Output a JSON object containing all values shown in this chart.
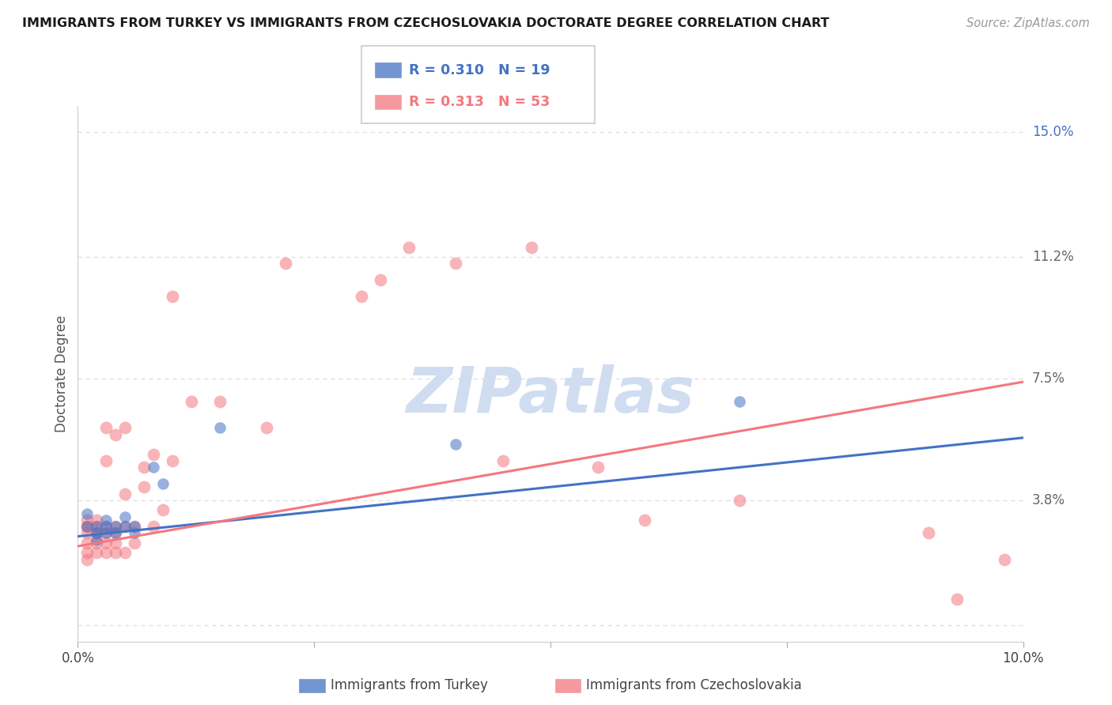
{
  "title": "IMMIGRANTS FROM TURKEY VS IMMIGRANTS FROM CZECHOSLOVAKIA DOCTORATE DEGREE CORRELATION CHART",
  "source": "Source: ZipAtlas.com",
  "ylabel": "Doctorate Degree",
  "y_ticks": [
    0.0,
    0.038,
    0.075,
    0.112,
    0.15
  ],
  "y_tick_labels": [
    "",
    "3.8%",
    "7.5%",
    "11.2%",
    "15.0%"
  ],
  "x_range": [
    0.0,
    0.1
  ],
  "y_range": [
    -0.005,
    0.158
  ],
  "legend1_R": "0.310",
  "legend1_N": "19",
  "legend2_R": "0.313",
  "legend2_N": "53",
  "blue_color": "#4472C4",
  "pink_color": "#F4777F",
  "blue_scatter": [
    [
      0.001,
      0.03
    ],
    [
      0.001,
      0.034
    ],
    [
      0.002,
      0.028
    ],
    [
      0.002,
      0.03
    ],
    [
      0.002,
      0.026
    ],
    [
      0.003,
      0.028
    ],
    [
      0.003,
      0.03
    ],
    [
      0.003,
      0.032
    ],
    [
      0.004,
      0.03
    ],
    [
      0.004,
      0.028
    ],
    [
      0.005,
      0.03
    ],
    [
      0.005,
      0.033
    ],
    [
      0.006,
      0.028
    ],
    [
      0.006,
      0.03
    ],
    [
      0.008,
      0.048
    ],
    [
      0.009,
      0.043
    ],
    [
      0.015,
      0.06
    ],
    [
      0.04,
      0.055
    ],
    [
      0.07,
      0.068
    ]
  ],
  "pink_scatter": [
    [
      0.001,
      0.03
    ],
    [
      0.001,
      0.028
    ],
    [
      0.001,
      0.025
    ],
    [
      0.001,
      0.022
    ],
    [
      0.001,
      0.02
    ],
    [
      0.001,
      0.03
    ],
    [
      0.001,
      0.032
    ],
    [
      0.002,
      0.028
    ],
    [
      0.002,
      0.025
    ],
    [
      0.002,
      0.022
    ],
    [
      0.002,
      0.03
    ],
    [
      0.002,
      0.032
    ],
    [
      0.002,
      0.028
    ],
    [
      0.003,
      0.028
    ],
    [
      0.003,
      0.03
    ],
    [
      0.003,
      0.025
    ],
    [
      0.003,
      0.022
    ],
    [
      0.003,
      0.05
    ],
    [
      0.003,
      0.06
    ],
    [
      0.004,
      0.058
    ],
    [
      0.004,
      0.03
    ],
    [
      0.004,
      0.028
    ],
    [
      0.004,
      0.022
    ],
    [
      0.004,
      0.025
    ],
    [
      0.005,
      0.03
    ],
    [
      0.005,
      0.04
    ],
    [
      0.005,
      0.022
    ],
    [
      0.005,
      0.06
    ],
    [
      0.006,
      0.03
    ],
    [
      0.006,
      0.025
    ],
    [
      0.007,
      0.048
    ],
    [
      0.007,
      0.042
    ],
    [
      0.008,
      0.052
    ],
    [
      0.008,
      0.03
    ],
    [
      0.009,
      0.035
    ],
    [
      0.01,
      0.05
    ],
    [
      0.01,
      0.1
    ],
    [
      0.012,
      0.068
    ],
    [
      0.015,
      0.068
    ],
    [
      0.02,
      0.06
    ],
    [
      0.022,
      0.11
    ],
    [
      0.03,
      0.1
    ],
    [
      0.032,
      0.105
    ],
    [
      0.035,
      0.115
    ],
    [
      0.04,
      0.11
    ],
    [
      0.045,
      0.05
    ],
    [
      0.048,
      0.115
    ],
    [
      0.055,
      0.048
    ],
    [
      0.06,
      0.032
    ],
    [
      0.07,
      0.038
    ],
    [
      0.09,
      0.028
    ],
    [
      0.093,
      0.008
    ],
    [
      0.098,
      0.02
    ]
  ],
  "blue_line": [
    [
      0.0,
      0.027
    ],
    [
      0.1,
      0.057
    ]
  ],
  "pink_line": [
    [
      0.0,
      0.024
    ],
    [
      0.1,
      0.074
    ]
  ],
  "watermark_text": "ZIPatlas",
  "background_color": "#FFFFFF",
  "grid_color": "#DDDDDD"
}
